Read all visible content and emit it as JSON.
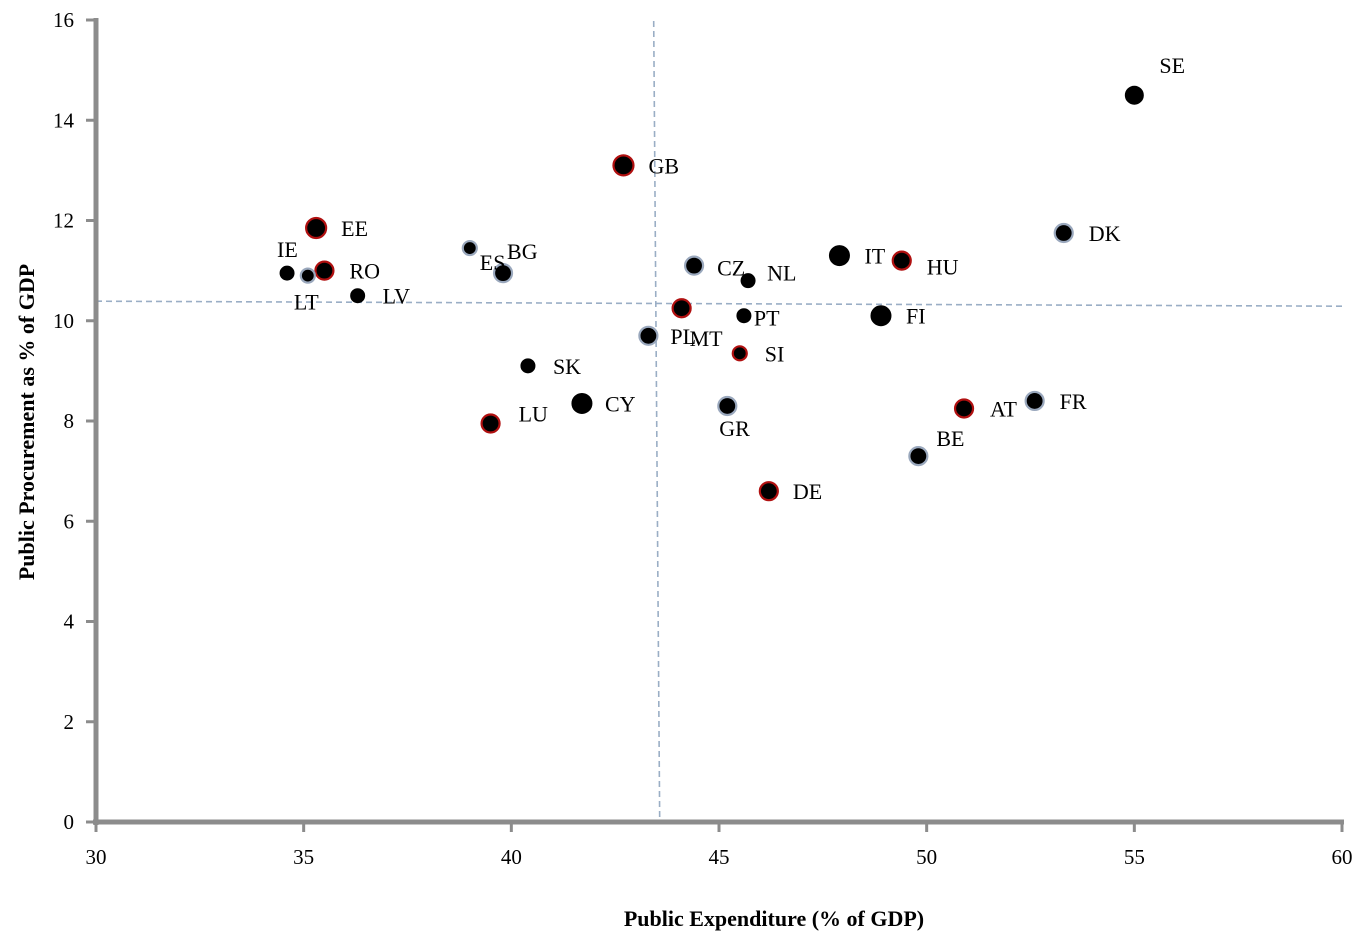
{
  "chart_data": {
    "type": "scatter",
    "title": "",
    "xlabel": "Public Expenditure (% of GDP)",
    "ylabel": "Public Procurement as % of GDP",
    "xlim": [
      30,
      60
    ],
    "ylim": [
      0,
      16
    ],
    "xticks": [
      30,
      35,
      40,
      45,
      50,
      55,
      60
    ],
    "yticks": [
      0,
      2,
      4,
      6,
      8,
      10,
      12,
      14,
      16
    ],
    "grid": false,
    "reference_lines": {
      "x": 43.5,
      "y": 10.33
    },
    "colors": {
      "marker_fill": "#000000",
      "ring_red": "#b01010",
      "ring_blue": "#9aa8bd",
      "reference_line": "#9aaec5",
      "axis": "#8c8c8c"
    },
    "points": [
      {
        "label": "SE",
        "x": 55.0,
        "y": 14.5,
        "ring": "none",
        "size": "m"
      },
      {
        "label": "GB",
        "x": 42.7,
        "y": 13.1,
        "ring": "red",
        "size": "l"
      },
      {
        "label": "EE",
        "x": 35.3,
        "y": 11.85,
        "ring": "red",
        "size": "l"
      },
      {
        "label": "DK",
        "x": 53.3,
        "y": 11.75,
        "ring": "blue",
        "size": "m"
      },
      {
        "label": "IE",
        "x": 34.6,
        "y": 10.95,
        "ring": "none",
        "size": "s"
      },
      {
        "label": "RO",
        "x": 35.5,
        "y": 11.0,
        "ring": "red",
        "size": "m"
      },
      {
        "label": "LT",
        "x": 35.1,
        "y": 10.9,
        "ring": "blue",
        "size": "s"
      },
      {
        "label": "LV",
        "x": 36.3,
        "y": 10.5,
        "ring": "none",
        "size": "s"
      },
      {
        "label": "ES",
        "x": 39.0,
        "y": 11.45,
        "ring": "blue",
        "size": "s"
      },
      {
        "label": "BG",
        "x": 39.8,
        "y": 10.95,
        "ring": "blue",
        "size": "m"
      },
      {
        "label": "CZ",
        "x": 44.4,
        "y": 11.1,
        "ring": "blue",
        "size": "m"
      },
      {
        "label": "NL",
        "x": 45.7,
        "y": 10.8,
        "ring": "none",
        "size": "s"
      },
      {
        "label": "IT",
        "x": 47.9,
        "y": 11.3,
        "ring": "none",
        "size": "l"
      },
      {
        "label": "HU",
        "x": 49.4,
        "y": 11.2,
        "ring": "red",
        "size": "m"
      },
      {
        "label": "MT",
        "x": 44.1,
        "y": 10.25,
        "ring": "red",
        "size": "m"
      },
      {
        "label": "PT",
        "x": 45.6,
        "y": 10.1,
        "ring": "none",
        "size": "s"
      },
      {
        "label": "FI",
        "x": 48.9,
        "y": 10.1,
        "ring": "none",
        "size": "l"
      },
      {
        "label": "PL",
        "x": 43.3,
        "y": 9.7,
        "ring": "blue",
        "size": "m"
      },
      {
        "label": "SI",
        "x": 45.5,
        "y": 9.35,
        "ring": "red",
        "size": "s"
      },
      {
        "label": "SK",
        "x": 40.4,
        "y": 9.1,
        "ring": "none",
        "size": "s"
      },
      {
        "label": "CY",
        "x": 41.7,
        "y": 8.35,
        "ring": "none",
        "size": "l"
      },
      {
        "label": "LU",
        "x": 39.5,
        "y": 7.95,
        "ring": "red",
        "size": "m"
      },
      {
        "label": "GR",
        "x": 45.2,
        "y": 8.3,
        "ring": "blue",
        "size": "m"
      },
      {
        "label": "AT",
        "x": 50.9,
        "y": 8.25,
        "ring": "red",
        "size": "m"
      },
      {
        "label": "FR",
        "x": 52.6,
        "y": 8.4,
        "ring": "blue",
        "size": "m"
      },
      {
        "label": "BE",
        "x": 49.8,
        "y": 7.3,
        "ring": "blue",
        "size": "m"
      },
      {
        "label": "DE",
        "x": 46.2,
        "y": 6.6,
        "ring": "red",
        "size": "m"
      }
    ]
  }
}
